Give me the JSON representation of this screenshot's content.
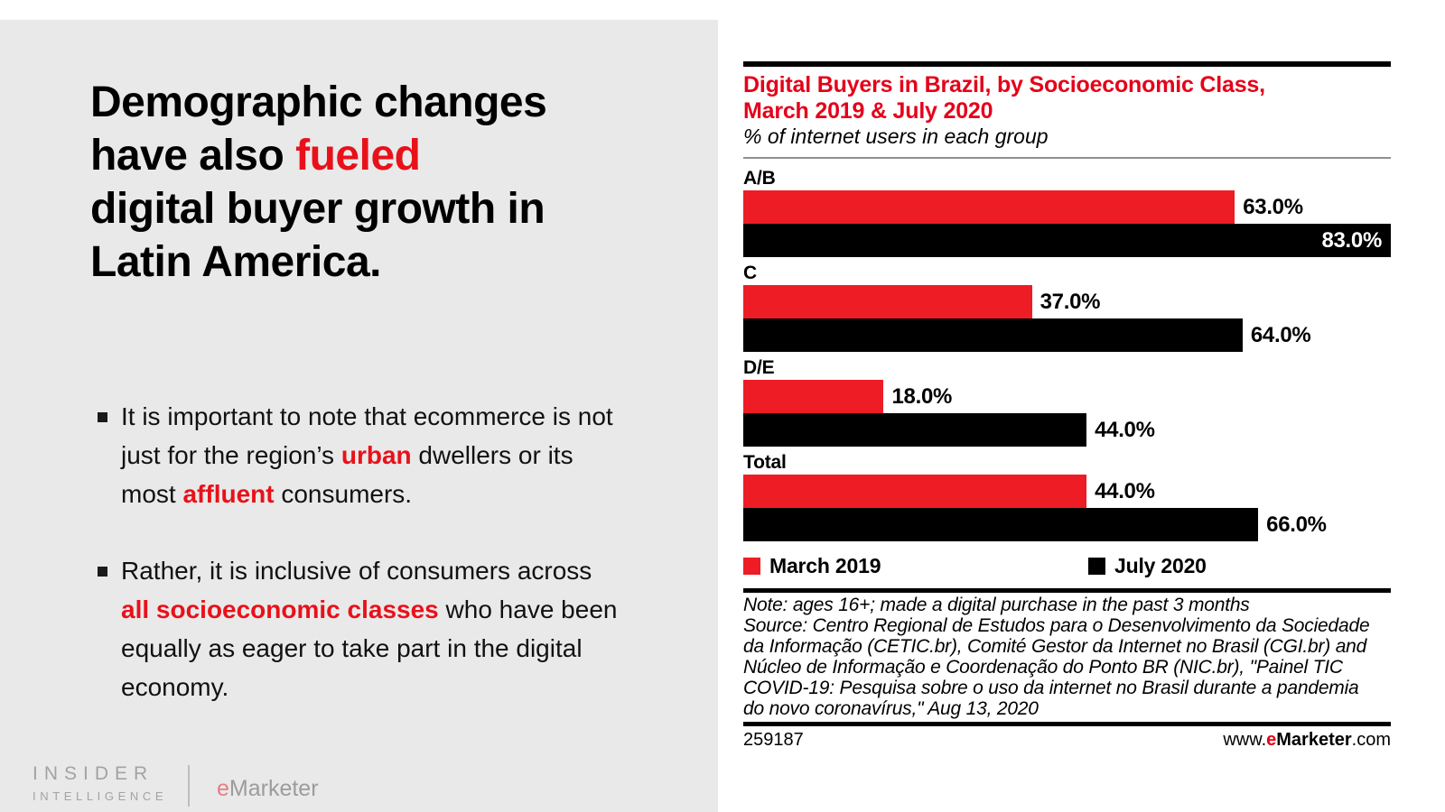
{
  "left_panel": {
    "headline": {
      "line1": "Demographic changes",
      "line2_pre": "have also ",
      "line2_red": "fueled",
      "line3": "digital buyer growth in",
      "line4": "Latin America."
    },
    "bullets": {
      "b1_l1": "It is important to note that ecommerce is not",
      "b1_l2_pre": "just for the region’s ",
      "b1_l2_red": "urban",
      "b1_l2_post": " dwellers or its",
      "b1_l3_pre": "most ",
      "b1_l3_red": "affluent",
      "b1_l3_post": " consumers.",
      "b2_l1": "Rather, it is inclusive of consumers across",
      "b2_l2_red": "all socioeconomic classes",
      "b2_l2_post": " who have been",
      "b2_l3": "equally as eager to take part in the digital",
      "b2_l4": "economy."
    },
    "brand": {
      "insider": "INSIDER",
      "intelligence": "INTELLIGENCE",
      "emarketer_e": "e",
      "emarketer_rest": "Marketer"
    }
  },
  "chart_data": {
    "type": "bar",
    "orientation": "horizontal",
    "title": "Digital Buyers in Brazil, by Socioeconomic Class, March 2019 & July 2020",
    "title_lines": [
      "Digital Buyers in Brazil, by Socioeconomic Class,",
      "March 2019 & July 2020"
    ],
    "subtitle": "% of internet users in each group",
    "categories": [
      "A/B",
      "C",
      "D/E",
      "Total"
    ],
    "series": [
      {
        "name": "March 2019",
        "color": "#ee1c25",
        "values": [
          63.0,
          37.0,
          18.0,
          44.0
        ],
        "labels": [
          "63.0%",
          "37.0%",
          "18.0%",
          "44.0%"
        ]
      },
      {
        "name": "July 2020",
        "color": "#000000",
        "values": [
          83.0,
          64.0,
          44.0,
          66.0
        ],
        "labels": [
          "83.0%",
          "64.0%",
          "44.0%",
          "66.0%"
        ]
      }
    ],
    "axis_max": 83,
    "grid": false,
    "legend_position": "bottom",
    "accent_red": "#e50019",
    "panel_gray": "#e9e9e9"
  },
  "footnote": {
    "note_line": "Note: ages 16+; made a digital purchase in the past 3 months",
    "source_lines": [
      "Source: Centro Regional de Estudos para o Desenvolvimento da Sociedade",
      "da Informação (CETIC.br), Comité Gestor da Internet no Brasil (CGI.br) and",
      "Núcleo de Informação e Coordenação do Ponto BR (NIC.br), \"Painel TIC",
      "COVID-19: Pesquisa sobre o uso da internet no Brasil durante a pandemia",
      "do novo coronavírus,\" Aug 13, 2020"
    ]
  },
  "footer": {
    "chart_id": "259187",
    "site_www": "www.",
    "site_e": "e",
    "site_marketer": "Marketer",
    "site_com": ".com"
  }
}
